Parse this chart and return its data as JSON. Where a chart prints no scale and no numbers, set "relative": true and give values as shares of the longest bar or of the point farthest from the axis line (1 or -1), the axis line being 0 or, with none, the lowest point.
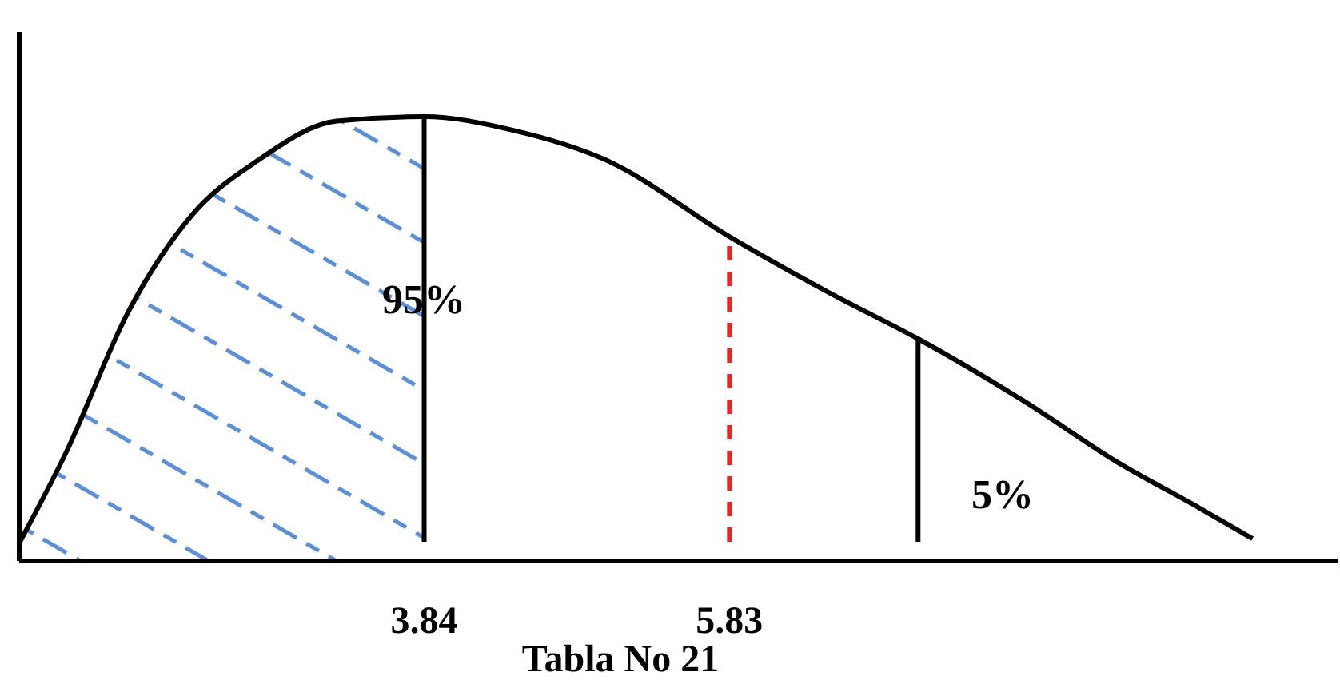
{
  "chart_data": {
    "type": "line",
    "relative": true,
    "color": "#000000",
    "x": [
      1.2,
      1.5,
      1.91,
      2.33,
      2.75,
      3.27,
      3.84,
      4.41,
      5.04,
      5.83,
      6.5,
      7.06,
      7.75,
      8.37,
      8.89,
      9.24
    ],
    "values": [
      0.04,
      0.24,
      0.56,
      0.78,
      0.9,
      0.99,
      1,
      0.97,
      0.9,
      0.73,
      0.6,
      0.5,
      0.36,
      0.22,
      0.12,
      0.05
    ],
    "xlim": [
      1.2,
      9.8
    ],
    "xticks": [
      {
        "value": 3.84,
        "label": "3.84"
      },
      {
        "value": 5.83,
        "label": "5.83"
      }
    ],
    "ref_lines": [
      {
        "axis": "x",
        "value": 3.84,
        "color": "#000000",
        "line_style": "solid"
      },
      {
        "axis": "x",
        "value": 5.83,
        "color": "#e8262a",
        "line_style": "dashed"
      },
      {
        "axis": "x",
        "value": 7.06,
        "color": "#000000",
        "line_style": "solid"
      }
    ],
    "bands": [
      {
        "axis": "x",
        "from": 1.2,
        "to": 3.84,
        "color": "#5b8fd9"
      }
    ],
    "annotations": [
      "95%",
      "5%",
      "Tabla No 21"
    ],
    "marker": "none",
    "line_style": "solid"
  }
}
